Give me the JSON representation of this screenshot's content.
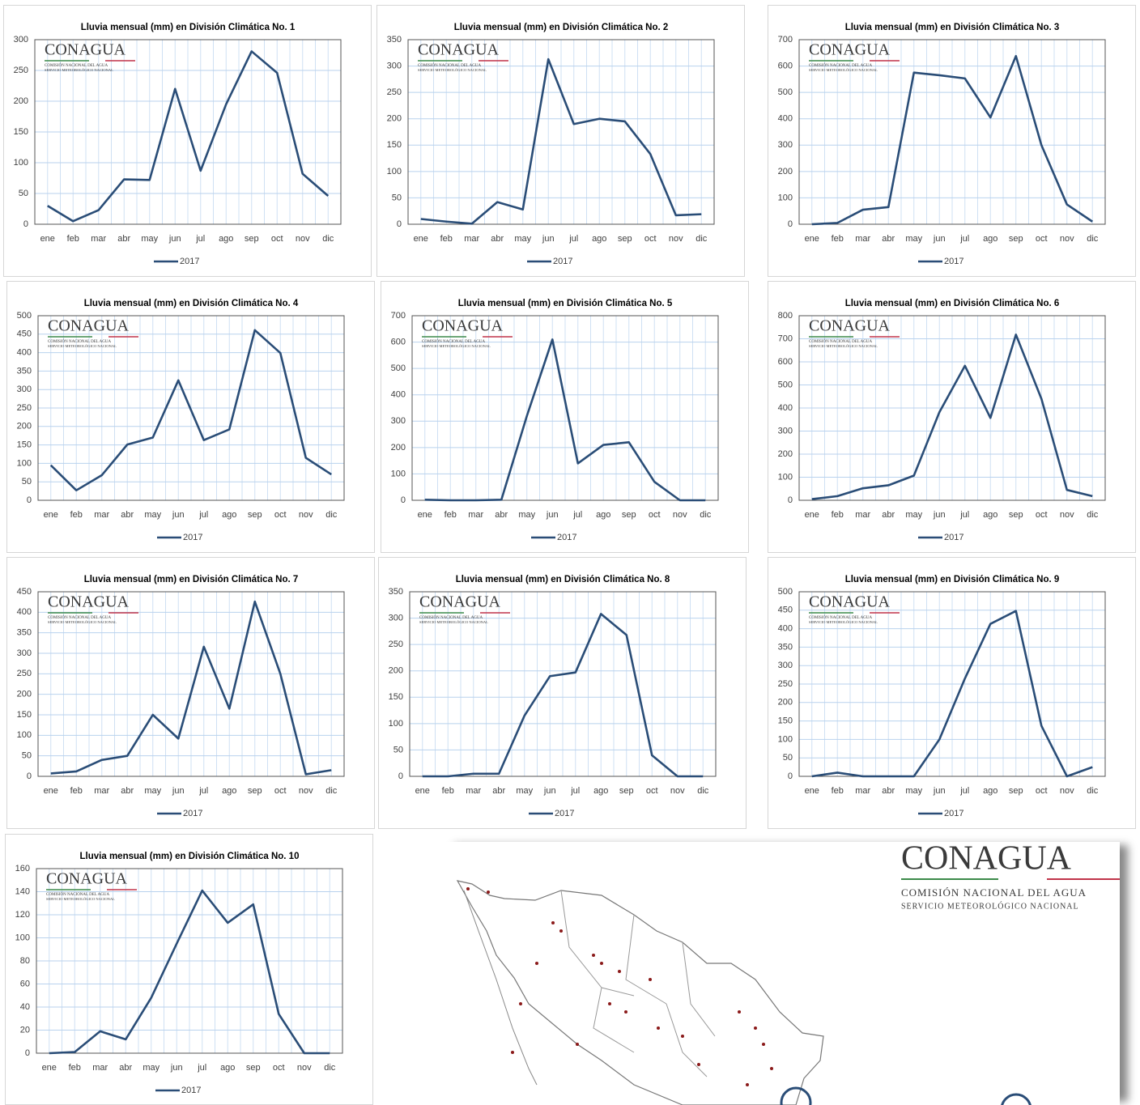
{
  "logo": {
    "name": "CONAGUA",
    "line1": "COMISIÓN NACIONAL DEL AGUA",
    "line2": "SERVICIO METEOROLÓGICO NACIONAL"
  },
  "chart_data": [
    {
      "type": "line",
      "title": "Lluvia mensual (mm) en División Climática  No. 1",
      "categories": [
        "ene",
        "feb",
        "mar",
        "abr",
        "may",
        "jun",
        "jul",
        "ago",
        "sep",
        "oct",
        "nov",
        "dic"
      ],
      "series": [
        {
          "name": "2017",
          "color": "#2a4d77",
          "values": [
            30,
            5,
            23,
            73,
            72,
            220,
            87,
            195,
            281,
            246,
            82,
            46
          ]
        }
      ],
      "ylim": [
        0,
        300
      ],
      "yticks": [
        0,
        50,
        100,
        150,
        200,
        250,
        300
      ],
      "grid": true,
      "legend": "bottom"
    },
    {
      "type": "line",
      "title": "Lluvia mensual (mm) en División Climática  No. 2",
      "categories": [
        "ene",
        "feb",
        "mar",
        "abr",
        "may",
        "jun",
        "jul",
        "ago",
        "sep",
        "oct",
        "nov",
        "dic"
      ],
      "series": [
        {
          "name": "2017",
          "color": "#2a4d77",
          "values": [
            10,
            5,
            1,
            42,
            28,
            313,
            190,
            200,
            195,
            133,
            17,
            19
          ]
        }
      ],
      "ylim": [
        0,
        350
      ],
      "yticks": [
        0,
        50,
        100,
        150,
        200,
        250,
        300,
        350
      ],
      "grid": true,
      "legend": "bottom"
    },
    {
      "type": "line",
      "title": "Lluvia mensual (mm) en División Climática  No. 3",
      "categories": [
        "ene",
        "feb",
        "mar",
        "abr",
        "may",
        "jun",
        "jul",
        "ago",
        "sep",
        "oct",
        "nov",
        "dic"
      ],
      "series": [
        {
          "name": "2017",
          "color": "#2a4d77",
          "values": [
            0,
            5,
            55,
            65,
            575,
            565,
            553,
            405,
            638,
            300,
            75,
            10
          ]
        }
      ],
      "ylim": [
        0,
        700
      ],
      "yticks": [
        0,
        100,
        200,
        300,
        400,
        500,
        600,
        700
      ],
      "grid": true,
      "legend": "bottom"
    },
    {
      "type": "line",
      "title": "Lluvia mensual (mm) en División Climática  No. 4",
      "categories": [
        "ene",
        "feb",
        "mar",
        "abr",
        "may",
        "jun",
        "jul",
        "ago",
        "sep",
        "oct",
        "nov",
        "dic"
      ],
      "series": [
        {
          "name": "2017",
          "color": "#2a4d77",
          "values": [
            95,
            27,
            68,
            151,
            170,
            325,
            163,
            192,
            461,
            399,
            115,
            70
          ]
        }
      ],
      "ylim": [
        0,
        500
      ],
      "yticks": [
        0,
        50,
        100,
        150,
        200,
        250,
        300,
        350,
        400,
        450,
        500
      ],
      "grid": true,
      "legend": "bottom"
    },
    {
      "type": "line",
      "title": "Lluvia mensual (mm) en División Climática  No. 5",
      "categories": [
        "ene",
        "feb",
        "mar",
        "abr",
        "may",
        "jun",
        "jul",
        "ago",
        "sep",
        "oct",
        "nov",
        "dic"
      ],
      "series": [
        {
          "name": "2017",
          "color": "#2a4d77",
          "values": [
            2,
            0,
            0,
            2,
            320,
            610,
            140,
            210,
            220,
            70,
            0,
            0
          ]
        }
      ],
      "ylim": [
        0,
        700
      ],
      "yticks": [
        0,
        100,
        200,
        300,
        400,
        500,
        600,
        700
      ],
      "grid": true,
      "legend": "bottom"
    },
    {
      "type": "line",
      "title": "Lluvia mensual (mm) en División Climática  No. 6",
      "categories": [
        "ene",
        "feb",
        "mar",
        "abr",
        "may",
        "jun",
        "jul",
        "ago",
        "sep",
        "oct",
        "nov",
        "dic"
      ],
      "series": [
        {
          "name": "2017",
          "color": "#2a4d77",
          "values": [
            5,
            18,
            52,
            65,
            107,
            382,
            583,
            357,
            718,
            440,
            45,
            18
          ]
        }
      ],
      "ylim": [
        0,
        800
      ],
      "yticks": [
        0,
        100,
        200,
        300,
        400,
        500,
        600,
        700,
        800
      ],
      "grid": true,
      "legend": "bottom"
    },
    {
      "type": "line",
      "title": "Lluvia mensual (mm) en División Climática  No. 7",
      "categories": [
        "ene",
        "feb",
        "mar",
        "abr",
        "may",
        "jun",
        "jul",
        "ago",
        "sep",
        "oct",
        "nov",
        "dic"
      ],
      "series": [
        {
          "name": "2017",
          "color": "#2a4d77",
          "values": [
            7,
            12,
            40,
            50,
            150,
            92,
            316,
            165,
            426,
            250,
            5,
            15
          ]
        }
      ],
      "ylim": [
        0,
        450
      ],
      "yticks": [
        0,
        50,
        100,
        150,
        200,
        250,
        300,
        350,
        400,
        450
      ],
      "grid": true,
      "legend": "bottom"
    },
    {
      "type": "line",
      "title": "Lluvia mensual (mm) en División Climática  No. 8",
      "categories": [
        "ene",
        "feb",
        "mar",
        "abr",
        "may",
        "jun",
        "jul",
        "ago",
        "sep",
        "oct",
        "nov",
        "dic"
      ],
      "series": [
        {
          "name": "2017",
          "color": "#2a4d77",
          "values": [
            0,
            0,
            5,
            5,
            115,
            190,
            197,
            308,
            268,
            40,
            0,
            0
          ]
        }
      ],
      "ylim": [
        0,
        350
      ],
      "yticks": [
        0,
        50,
        100,
        150,
        200,
        250,
        300,
        350
      ],
      "grid": true,
      "legend": "bottom"
    },
    {
      "type": "line",
      "title": "Lluvia mensual (mm) en División Climática  No. 9",
      "categories": [
        "ene",
        "feb",
        "mar",
        "abr",
        "may",
        "jun",
        "jul",
        "ago",
        "sep",
        "oct",
        "nov",
        "dic"
      ],
      "series": [
        {
          "name": "2017",
          "color": "#2a4d77",
          "values": [
            0,
            10,
            0,
            0,
            0,
            100,
            265,
            413,
            448,
            137,
            0,
            25
          ]
        }
      ],
      "ylim": [
        0,
        500
      ],
      "yticks": [
        0,
        50,
        100,
        150,
        200,
        250,
        300,
        350,
        400,
        450,
        500
      ],
      "grid": true,
      "legend": "bottom"
    },
    {
      "type": "line",
      "title": "Lluvia mensual (mm) en División Climática  No. 10",
      "categories": [
        "ene",
        "feb",
        "mar",
        "abr",
        "may",
        "jun",
        "jul",
        "ago",
        "sep",
        "oct",
        "nov",
        "dic"
      ],
      "series": [
        {
          "name": "2017",
          "color": "#2a4d77",
          "values": [
            0,
            1,
            19,
            12,
            48,
            95,
            141,
            113,
            129,
            34,
            0,
            0
          ]
        }
      ],
      "ylim": [
        0,
        160
      ],
      "yticks": [
        0,
        20,
        40,
        60,
        80,
        100,
        120,
        140,
        160
      ],
      "grid": true,
      "legend": "bottom"
    }
  ]
}
